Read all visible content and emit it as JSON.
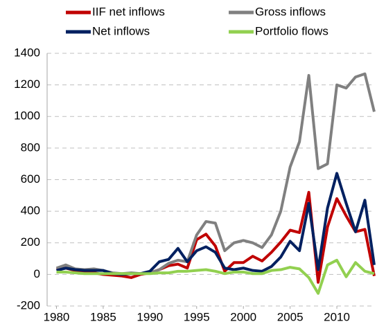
{
  "chart_data": {
    "type": "line",
    "x": [
      1980,
      1981,
      1982,
      1983,
      1984,
      1985,
      1986,
      1987,
      1988,
      1989,
      1990,
      1991,
      1992,
      1993,
      1994,
      1995,
      1996,
      1997,
      1998,
      1999,
      2000,
      2001,
      2002,
      2003,
      2004,
      2005,
      2006,
      2007,
      2008,
      2009,
      2010,
      2011,
      2012,
      2013,
      2014
    ],
    "series": [
      {
        "name": "IIF net inflows",
        "color": "#c00000",
        "values": [
          30,
          40,
          25,
          20,
          10,
          0,
          -5,
          -10,
          -20,
          0,
          10,
          30,
          55,
          65,
          40,
          220,
          255,
          180,
          20,
          75,
          75,
          115,
          85,
          140,
          205,
          280,
          265,
          520,
          -50,
          300,
          480,
          370,
          270,
          285,
          -10
        ]
      },
      {
        "name": "Gross inflows",
        "color": "#808080",
        "values": [
          40,
          60,
          35,
          30,
          35,
          25,
          10,
          5,
          10,
          5,
          10,
          30,
          70,
          90,
          80,
          250,
          335,
          325,
          150,
          200,
          215,
          200,
          170,
          250,
          400,
          680,
          840,
          1260,
          670,
          700,
          1200,
          1180,
          1250,
          1270,
          1030
        ]
      },
      {
        "name": "Net inflows",
        "color": "#002060",
        "values": [
          25,
          40,
          30,
          25,
          25,
          25,
          5,
          0,
          5,
          5,
          20,
          80,
          95,
          165,
          80,
          150,
          175,
          140,
          40,
          30,
          40,
          25,
          20,
          50,
          110,
          210,
          150,
          450,
          30,
          420,
          640,
          450,
          270,
          470,
          60
        ]
      },
      {
        "name": "Portfolio flows",
        "color": "#92d050",
        "values": [
          15,
          15,
          10,
          5,
          5,
          5,
          5,
          5,
          5,
          5,
          5,
          10,
          10,
          20,
          20,
          25,
          30,
          20,
          5,
          15,
          15,
          5,
          5,
          25,
          30,
          45,
          35,
          -20,
          -120,
          60,
          90,
          -15,
          75,
          20,
          5
        ]
      }
    ],
    "xlim": [
      1979,
      2014
    ],
    "xticks": [
      1980,
      1985,
      1990,
      1995,
      2000,
      2005,
      2010
    ],
    "ylim": [
      -200,
      1400
    ],
    "yticks": [
      -200,
      0,
      200,
      400,
      600,
      800,
      1000,
      1200,
      1400
    ],
    "grid": true
  }
}
